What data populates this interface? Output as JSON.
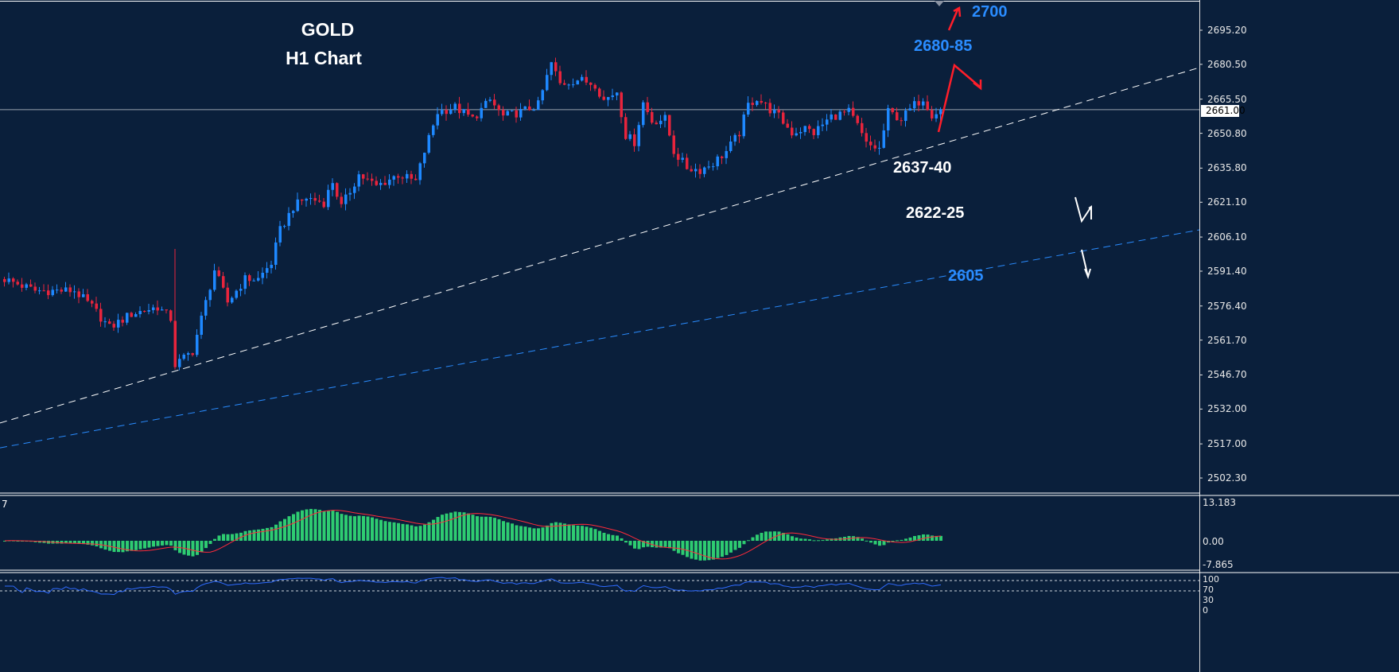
{
  "title": {
    "line1": "GOLD",
    "line2": "H1 Chart"
  },
  "colors": {
    "background": "#0a1f3b",
    "bull": "#1e88ff",
    "bear": "#e8243c",
    "macd_hist": "#2ecc71",
    "macd_signal": "#ff2a3a",
    "rsi": "#2f6bff",
    "trend_white": "#ffffff",
    "trend_blue": "#2a8cff"
  },
  "annotations": [
    {
      "text": "2700",
      "color": "#2a8cff"
    },
    {
      "text": "2680-85",
      "color": "#2a8cff"
    },
    {
      "text": "2637-40",
      "color": "#ffffff"
    },
    {
      "text": "2622-25",
      "color": "#ffffff"
    },
    {
      "text": "2605",
      "color": "#2a8cff"
    }
  ],
  "chart_data": {
    "type": "candlestick",
    "ylim": [
      2497,
      2706
    ],
    "y_ticks": [
      "2695.20",
      "2680.50",
      "2665.50",
      "2650.80",
      "2635.80",
      "2621.10",
      "2606.10",
      "2591.40",
      "2576.40",
      "2561.70",
      "2546.70",
      "2532.00",
      "2517.00",
      "2502.30"
    ],
    "current_price": "2661.00",
    "price_path": [
      [
        0,
        2588
      ],
      [
        7,
        2583
      ],
      [
        16,
        2583
      ],
      [
        20,
        2576
      ],
      [
        24,
        2567
      ],
      [
        29,
        2573
      ],
      [
        35,
        2576
      ],
      [
        38,
        2571
      ],
      [
        39,
        2551
      ],
      [
        43,
        2557
      ],
      [
        48,
        2592
      ],
      [
        51,
        2578
      ],
      [
        55,
        2588
      ],
      [
        58,
        2588
      ],
      [
        61,
        2595
      ],
      [
        63,
        2609
      ],
      [
        66,
        2619
      ],
      [
        69,
        2623
      ],
      [
        73,
        2621
      ],
      [
        75,
        2630
      ],
      [
        77,
        2619
      ],
      [
        81,
        2633
      ],
      [
        85,
        2628
      ],
      [
        90,
        2633
      ],
      [
        94,
        2630
      ],
      [
        96,
        2643
      ],
      [
        99,
        2660
      ],
      [
        103,
        2662
      ],
      [
        107,
        2657
      ],
      [
        111,
        2665
      ],
      [
        114,
        2658
      ],
      [
        118,
        2660
      ],
      [
        122,
        2663
      ],
      [
        125,
        2681
      ],
      [
        127,
        2672
      ],
      [
        131,
        2674
      ],
      [
        135,
        2672
      ],
      [
        137,
        2665
      ],
      [
        140,
        2669
      ],
      [
        142,
        2650
      ],
      [
        144,
        2647
      ],
      [
        146,
        2664
      ],
      [
        148,
        2656
      ],
      [
        151,
        2657
      ],
      [
        153,
        2643
      ],
      [
        156,
        2636
      ],
      [
        159,
        2635
      ],
      [
        162,
        2638
      ],
      [
        165,
        2643
      ],
      [
        168,
        2651
      ],
      [
        170,
        2663
      ],
      [
        172,
        2666
      ],
      [
        175,
        2661
      ],
      [
        177,
        2658
      ],
      [
        180,
        2651
      ],
      [
        183,
        2653
      ],
      [
        185,
        2651
      ],
      [
        189,
        2658
      ],
      [
        193,
        2660
      ],
      [
        195,
        2654
      ],
      [
        197,
        2646
      ],
      [
        200,
        2644
      ],
      [
        202,
        2660
      ],
      [
        205,
        2657
      ],
      [
        208,
        2663
      ],
      [
        210,
        2666
      ],
      [
        212,
        2659
      ],
      [
        214,
        2661
      ]
    ],
    "trendlines": [
      {
        "style": "dashed",
        "color": "#ffffff",
        "from": 2526.0,
        "to": 2679.1
      },
      {
        "style": "dashed",
        "color": "#2a8cff",
        "from": 2515.3,
        "to": 2609.2
      }
    ],
    "indicators": {
      "macd": {
        "ticks": [
          "13.183",
          "0.00",
          "-7.865"
        ],
        "label": "7",
        "max": 13.183,
        "min": -7.865
      },
      "rsi": {
        "ticks": [
          "100",
          "70",
          "30",
          "0"
        ],
        "levels": [
          70,
          30
        ]
      }
    }
  }
}
